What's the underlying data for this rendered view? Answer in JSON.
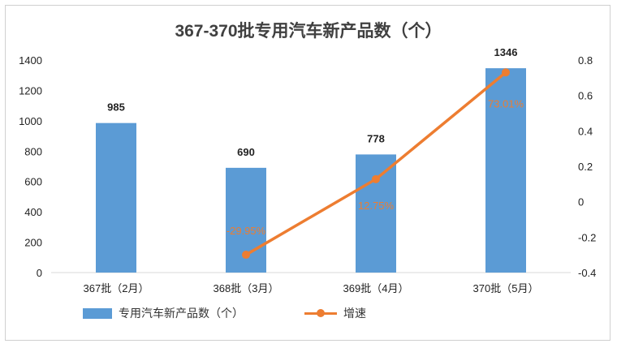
{
  "chart_data": {
    "type": "bar",
    "title": "367-370批专用汽车新产品数（个）",
    "categories": [
      "367批（2月）",
      "368批（3月）",
      "369批（4月）",
      "370批（5月）"
    ],
    "series": [
      {
        "name": "专用汽车新产品数（个）",
        "type": "bar",
        "axis": "left",
        "color": "#5b9bd5",
        "values": [
          985,
          690,
          778,
          1346
        ],
        "labels": [
          "985",
          "690",
          "778",
          "1346"
        ]
      },
      {
        "name": "增速",
        "type": "line",
        "axis": "right",
        "color": "#ed7d31",
        "values": [
          null,
          -0.2995,
          0.1275,
          0.7301
        ],
        "labels": [
          null,
          "-29.95%",
          "12.75%",
          "73.01%"
        ]
      }
    ],
    "ylim": [
      0,
      1400
    ],
    "yticks": [
      "0",
      "200",
      "400",
      "600",
      "800",
      "1000",
      "1200",
      "1400"
    ],
    "y2lim": [
      -0.4,
      0.8
    ],
    "y2ticks": [
      "-0.4",
      "-0.2",
      "0",
      "0.2",
      "0.4",
      "0.6",
      "0.8"
    ],
    "legend_position": "bottom",
    "grid": false
  }
}
